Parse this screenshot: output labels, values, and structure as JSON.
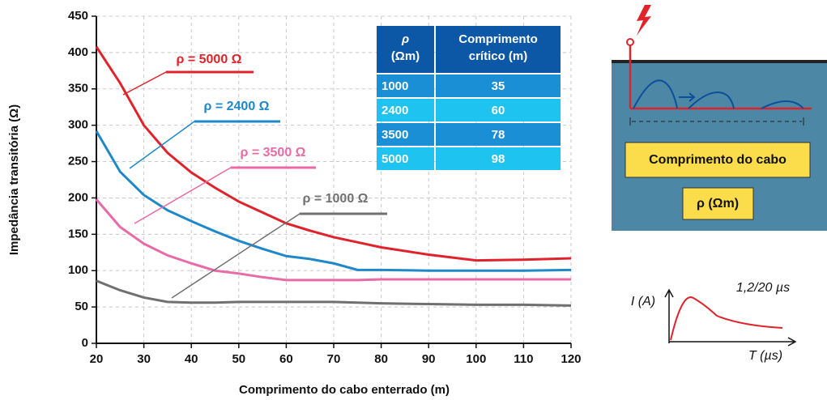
{
  "chart_data": {
    "type": "line",
    "xlabel": "Comprimento do cabo enterrado (m)",
    "ylabel": "Impedância transitória (Ω)",
    "x": [
      20,
      25,
      30,
      35,
      40,
      45,
      50,
      55,
      60,
      65,
      70,
      75,
      80,
      90,
      100,
      110,
      120
    ],
    "series": [
      {
        "name": "ρ = 5000 Ω",
        "color": "#e0232b",
        "values": [
          408,
          358,
          300,
          262,
          235,
          214,
          195,
          180,
          165,
          155,
          146,
          139,
          132,
          122,
          114,
          115,
          117
        ]
      },
      {
        "name": "ρ = 2400 Ω",
        "color": "#1e88c8",
        "values": [
          292,
          236,
          204,
          183,
          168,
          154,
          141,
          130,
          120,
          116,
          110,
          101,
          101,
          100,
          100,
          100,
          101
        ]
      },
      {
        "name": "ρ = 3500 Ω",
        "color": "#e86aa6",
        "values": [
          198,
          160,
          137,
          121,
          110,
          100,
          96,
          91,
          87,
          87,
          87,
          87,
          88,
          88,
          88,
          88,
          88
        ]
      },
      {
        "name": "ρ = 1000 Ω",
        "color": "#707070",
        "values": [
          86,
          73,
          63,
          57,
          56,
          56,
          57,
          57,
          57,
          57,
          57,
          56,
          55,
          54,
          53,
          53,
          52
        ]
      }
    ],
    "xlim": [
      20,
      120
    ],
    "xticks": [
      20,
      30,
      40,
      50,
      60,
      70,
      80,
      90,
      100,
      110,
      120
    ],
    "ylim": [
      0,
      450
    ],
    "yticks": [
      0,
      50,
      100,
      150,
      200,
      250,
      300,
      350,
      400,
      450
    ],
    "grid": true
  },
  "table": {
    "header": [
      [
        "ρ",
        "(Ωm)"
      ],
      [
        "Comprimento",
        "crítico (m)"
      ]
    ],
    "rows": [
      [
        1000,
        35
      ],
      [
        2400,
        60
      ],
      [
        3500,
        78
      ],
      [
        5000,
        98
      ]
    ]
  },
  "diagram": {
    "length_label": "Comprimento do cabo",
    "rho_label": "ρ (Ωm)",
    "current_label": "I (A)",
    "waveform": "1,2/20 µs",
    "time_label": "T (µs)"
  }
}
